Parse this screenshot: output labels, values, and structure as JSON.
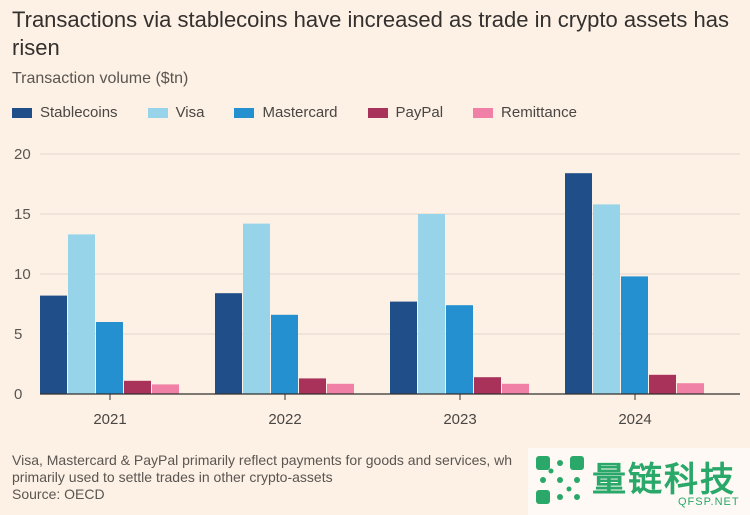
{
  "title": "Transactions via stablecoins have increased as trade in crypto assets has risen",
  "subtitle": "Transaction volume ($tn)",
  "note_line1": "Visa, Mastercard & PayPal primarily reflect payments for goods and services, wh",
  "note_line2": "primarily used to settle trades in other crypto-assets",
  "source": "Source: OECD",
  "watermark": {
    "text": "量链科技",
    "sub": "QFSP.NET",
    "icon": "qr-dots-icon"
  },
  "colors": {
    "background": "#fdf1e6",
    "grid": "#e3d8cf",
    "axis": "#33302e",
    "Stablecoins": "#1f4e89",
    "Visa": "#97d4ea",
    "Mastercard": "#2490d0",
    "PayPal": "#a8325a",
    "Remittance": "#f080a6"
  },
  "chart_data": {
    "type": "bar",
    "title": "Transactions via stablecoins have increased as trade in crypto assets has risen",
    "ylabel": "Transaction volume ($tn)",
    "xlabel": "",
    "categories": [
      "2021",
      "2022",
      "2023",
      "2024"
    ],
    "ylim": [
      0,
      20
    ],
    "yticks": [
      0,
      5,
      10,
      15,
      20
    ],
    "grid": true,
    "legend_position": "top-left",
    "series": [
      {
        "name": "Stablecoins",
        "values": [
          8.2,
          8.4,
          7.7,
          18.4
        ]
      },
      {
        "name": "Visa",
        "values": [
          13.3,
          14.2,
          15.0,
          15.8
        ]
      },
      {
        "name": "Mastercard",
        "values": [
          6.0,
          6.6,
          7.4,
          9.8
        ]
      },
      {
        "name": "PayPal",
        "values": [
          1.1,
          1.3,
          1.4,
          1.6
        ]
      },
      {
        "name": "Remittance",
        "values": [
          0.8,
          0.85,
          0.85,
          0.9
        ]
      }
    ]
  }
}
